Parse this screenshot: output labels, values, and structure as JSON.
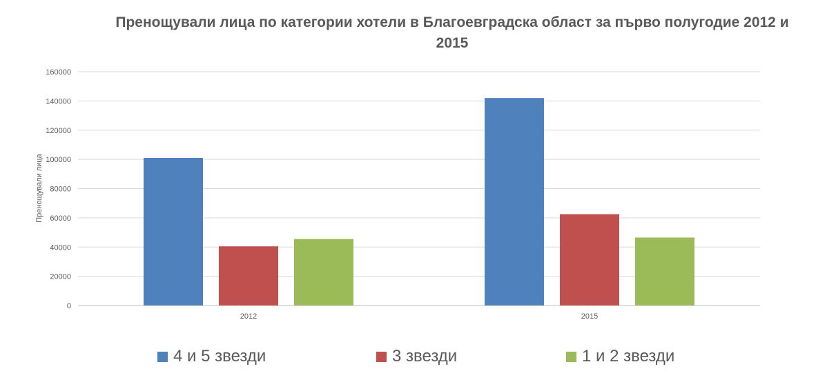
{
  "chart_data": {
    "type": "bar",
    "title": "Пренощували лица по категории хотели в Благоевградска област за първо полугодие 2012 и 2015",
    "xlabel": "",
    "ylabel": "Пренощували лица",
    "categories": [
      "2012",
      "2015"
    ],
    "series": [
      {
        "name": "4 и 5 звезди",
        "color": "#4F81BD",
        "values": [
          101000,
          142000
        ]
      },
      {
        "name": "3 звезди",
        "color": "#C0504D",
        "values": [
          40500,
          62500
        ]
      },
      {
        "name": "1 и 2 звезди",
        "color": "#9BBB59",
        "values": [
          45500,
          46500
        ]
      }
    ],
    "ylim": [
      0,
      160000
    ],
    "yticks": [
      "0",
      "20000",
      "40000",
      "60000",
      "80000",
      "100000",
      "120000",
      "140000",
      "160000"
    ],
    "grid": true,
    "legend_position": "bottom"
  }
}
